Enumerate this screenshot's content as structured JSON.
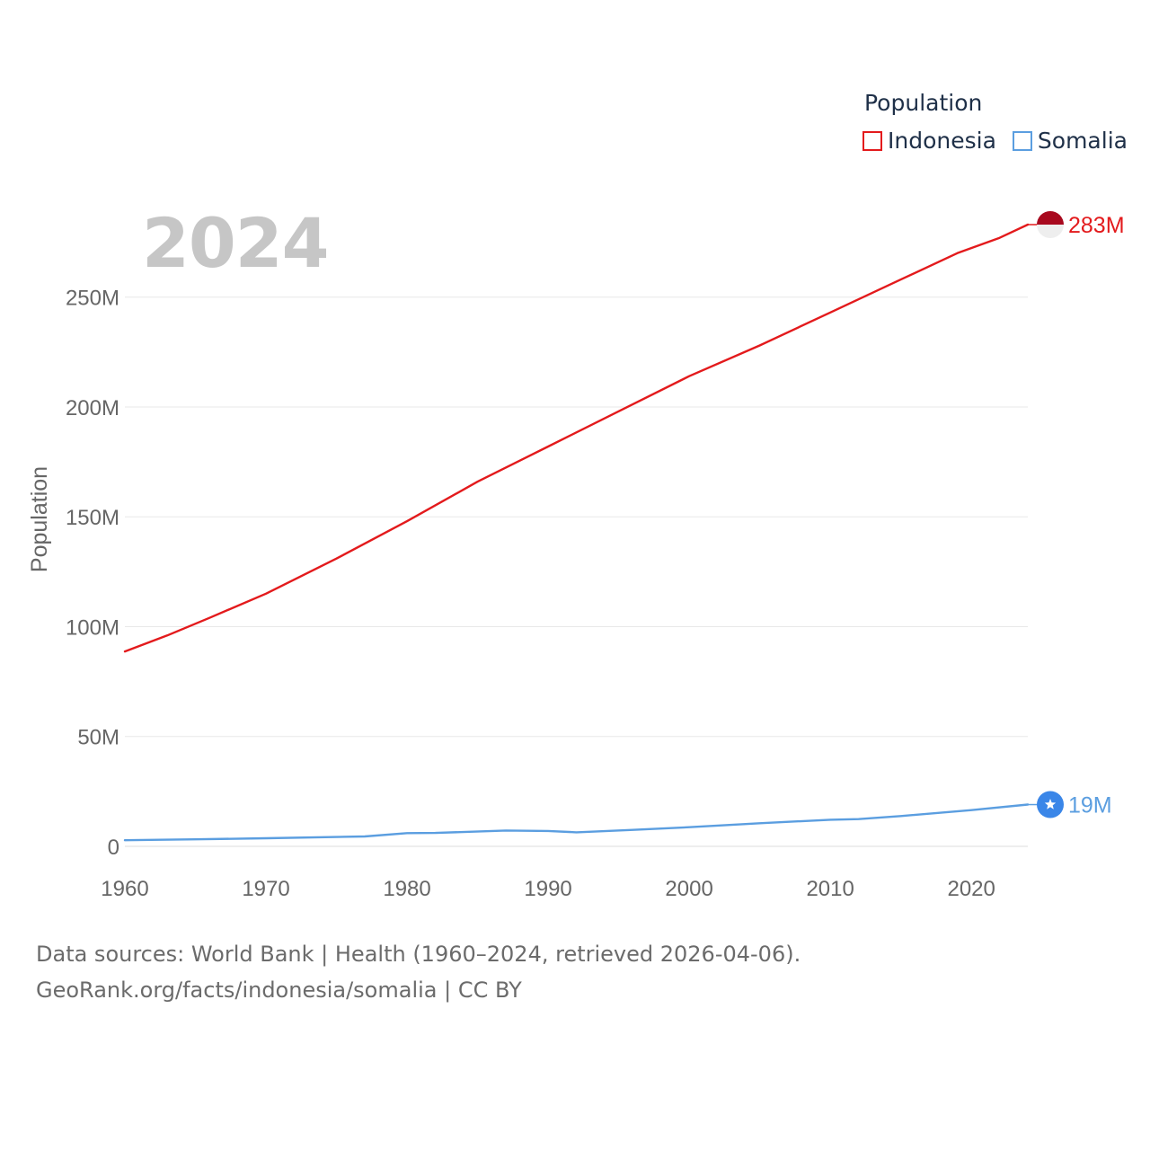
{
  "legend": {
    "title": "Population",
    "items": [
      {
        "label": "Indonesia",
        "color": "#e31a1c"
      },
      {
        "label": "Somalia",
        "color": "#5b9ee0"
      }
    ]
  },
  "year_display": "2024",
  "footer": {
    "line1": "Data sources: World Bank | Health (1960–2024, retrieved 2026-04-06).",
    "line2": "GeoRank.org/facts/indonesia/somalia | CC BY"
  },
  "chart_data": {
    "type": "line",
    "title": "",
    "xlabel": "",
    "ylabel": "Population",
    "xlim": [
      1960,
      2024
    ],
    "ylim": [
      0,
      283000000
    ],
    "xticks": [
      1960,
      1970,
      1980,
      1990,
      2000,
      2010,
      2020
    ],
    "yticks": [
      0,
      50000000,
      100000000,
      150000000,
      200000000,
      250000000
    ],
    "ytick_labels": [
      "0",
      "50M",
      "100M",
      "150M",
      "200M",
      "250M"
    ],
    "grid": true,
    "legend_position": "top-right",
    "series": [
      {
        "name": "Indonesia",
        "color": "#e31a1c",
        "end_label": "283M",
        "end_marker": "flag-indonesia",
        "x": [
          1960,
          1963,
          1966,
          1970,
          1975,
          1980,
          1985,
          1990,
          1995,
          2000,
          2005,
          2010,
          2015,
          2019,
          2022,
          2024
        ],
        "y": [
          88700000,
          96000000,
          104000000,
          115000000,
          131000000,
          148000000,
          166000000,
          182000000,
          198000000,
          214000000,
          228000000,
          243000000,
          258000000,
          270000000,
          277000000,
          283000000
        ]
      },
      {
        "name": "Somalia",
        "color": "#5b9ee0",
        "end_label": "19M",
        "end_marker": "star-icon",
        "x": [
          1960,
          1965,
          1970,
          1977,
          1980,
          1982,
          1987,
          1990,
          1992,
          1996,
          2000,
          2005,
          2010,
          2012,
          2015,
          2020,
          2024
        ],
        "y": [
          2800000,
          3200000,
          3700000,
          4500000,
          6000000,
          6100000,
          7200000,
          7000000,
          6400000,
          7500000,
          8700000,
          10500000,
          12100000,
          12400000,
          13800000,
          16500000,
          19000000
        ]
      }
    ]
  }
}
